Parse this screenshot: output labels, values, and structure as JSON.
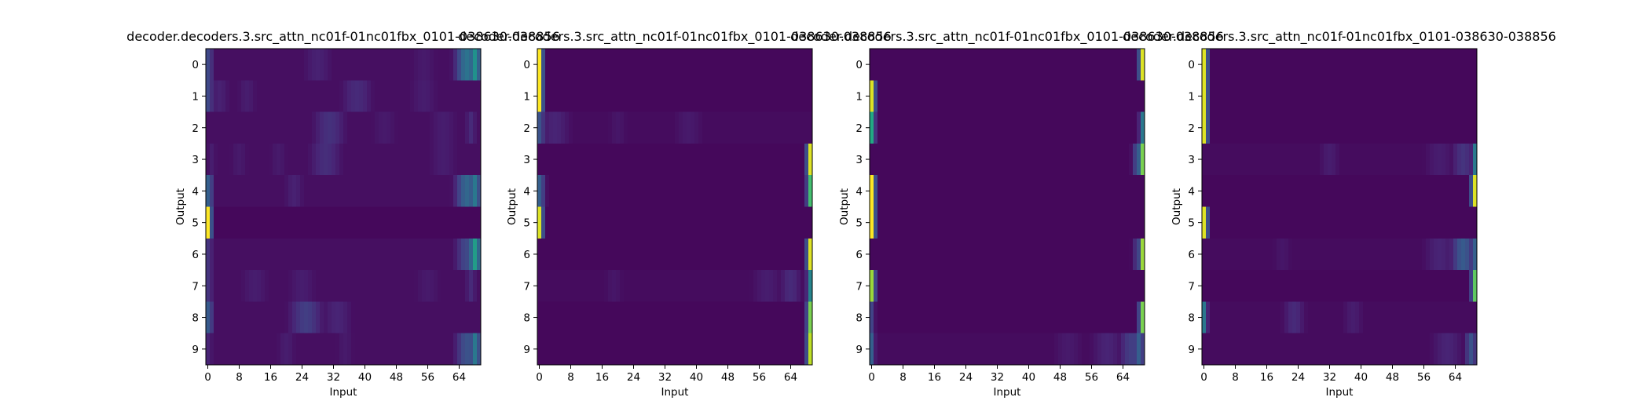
{
  "chart_data": [
    {
      "type": "heatmap",
      "title": "decoder.decoders.3.src_attn_nc01f-01nc01fbx_0101-038630-038856",
      "xlabel": "Input",
      "ylabel": "Output",
      "x_ticks": [
        "0",
        "8",
        "16",
        "24",
        "32",
        "40",
        "48",
        "56",
        "64"
      ],
      "y_ticks": [
        "0",
        "1",
        "2",
        "3",
        "4",
        "5",
        "6",
        "7",
        "8",
        "9"
      ],
      "n_inputs": 70,
      "colormap": "viridis",
      "value_range": [
        0,
        1
      ],
      "rows": [
        {
          "base": 0.04,
          "peaks": [
            [
              0,
              0.22,
              1
            ],
            [
              28,
              0.09,
              3
            ],
            [
              55,
              0.07,
              3
            ],
            [
              66,
              0.38,
              2
            ],
            [
              68,
              0.5,
              1
            ]
          ]
        },
        {
          "base": 0.04,
          "peaks": [
            [
              0,
              0.22,
              1
            ],
            [
              3,
              0.09,
              2
            ],
            [
              10,
              0.08,
              2
            ],
            [
              38,
              0.12,
              3
            ],
            [
              55,
              0.08,
              3
            ]
          ]
        },
        {
          "base": 0.04,
          "peaks": [
            [
              31,
              0.14,
              3
            ],
            [
              45,
              0.07,
              3
            ],
            [
              60,
              0.08,
              3
            ],
            [
              67,
              0.12,
              1
            ]
          ]
        },
        {
          "base": 0.04,
          "peaks": [
            [
              1,
              0.08,
              1
            ],
            [
              8,
              0.07,
              2
            ],
            [
              18,
              0.07,
              2
            ],
            [
              30,
              0.13,
              3
            ],
            [
              60,
              0.08,
              3
            ]
          ]
        },
        {
          "base": 0.04,
          "peaks": [
            [
              0,
              0.3,
              1
            ],
            [
              22,
              0.09,
              2
            ],
            [
              66,
              0.33,
              2
            ],
            [
              68,
              0.4,
              1
            ]
          ]
        },
        {
          "base": 0.02,
          "peaks": [
            [
              0,
              1.0,
              0.6
            ]
          ]
        },
        {
          "base": 0.04,
          "peaks": [
            [
              0,
              0.15,
              1
            ],
            [
              66,
              0.22,
              2
            ],
            [
              68,
              0.55,
              1
            ]
          ]
        },
        {
          "base": 0.04,
          "peaks": [
            [
              0,
              0.15,
              1
            ],
            [
              12,
              0.08,
              3
            ],
            [
              24,
              0.08,
              3
            ],
            [
              56,
              0.07,
              3
            ],
            [
              67,
              0.12,
              1
            ]
          ]
        },
        {
          "base": 0.04,
          "peaks": [
            [
              0,
              0.28,
              1
            ],
            [
              25,
              0.18,
              3
            ],
            [
              33,
              0.1,
              3
            ]
          ]
        },
        {
          "base": 0.04,
          "peaks": [
            [
              0,
              0.1,
              1
            ],
            [
              20,
              0.08,
              2
            ],
            [
              35,
              0.07,
              2
            ],
            [
              66,
              0.25,
              2
            ],
            [
              68,
              0.4,
              1
            ]
          ]
        }
      ]
    },
    {
      "type": "heatmap",
      "title": "decoder.decoders.3.src_attn_nc01f-01nc01fbx_0101-038630-038856",
      "xlabel": "Input",
      "ylabel": "Output",
      "x_ticks": [
        "0",
        "8",
        "16",
        "24",
        "32",
        "40",
        "48",
        "56",
        "64"
      ],
      "y_ticks": [
        "0",
        "1",
        "2",
        "3",
        "4",
        "5",
        "6",
        "7",
        "8",
        "9"
      ],
      "n_inputs": 70,
      "colormap": "viridis",
      "value_range": [
        0,
        1
      ],
      "rows": [
        {
          "base": 0.02,
          "peaks": [
            [
              0,
              1.0,
              0.6
            ]
          ]
        },
        {
          "base": 0.02,
          "peaks": [
            [
              0,
              1.0,
              0.6
            ]
          ]
        },
        {
          "base": 0.03,
          "peaks": [
            [
              0,
              0.25,
              1
            ],
            [
              4,
              0.1,
              3
            ],
            [
              20,
              0.06,
              2
            ],
            [
              38,
              0.07,
              3
            ]
          ]
        },
        {
          "base": 0.02,
          "peaks": [
            [
              69,
              0.95,
              0.6
            ]
          ]
        },
        {
          "base": 0.02,
          "peaks": [
            [
              0,
              0.3,
              1
            ],
            [
              69,
              0.7,
              0.6
            ]
          ]
        },
        {
          "base": 0.02,
          "peaks": [
            [
              0,
              0.95,
              0.6
            ]
          ]
        },
        {
          "base": 0.02,
          "peaks": [
            [
              69,
              0.95,
              0.6
            ]
          ]
        },
        {
          "base": 0.03,
          "peaks": [
            [
              19,
              0.06,
              2
            ],
            [
              58,
              0.08,
              3
            ],
            [
              64,
              0.12,
              2
            ],
            [
              69,
              0.45,
              0.6
            ]
          ]
        },
        {
          "base": 0.02,
          "peaks": [
            [
              69,
              0.8,
              0.6
            ]
          ]
        },
        {
          "base": 0.02,
          "peaks": [
            [
              69,
              0.9,
              0.6
            ]
          ]
        }
      ]
    },
    {
      "type": "heatmap",
      "title": "decoder.decoders.3.src_attn_nc01f-01nc01fbx_0101-038630-038856",
      "xlabel": "Input",
      "ylabel": "Output",
      "x_ticks": [
        "0",
        "8",
        "16",
        "24",
        "32",
        "40",
        "48",
        "56",
        "64"
      ],
      "y_ticks": [
        "0",
        "1",
        "2",
        "3",
        "4",
        "5",
        "6",
        "7",
        "8",
        "9"
      ],
      "n_inputs": 70,
      "colormap": "viridis",
      "value_range": [
        0,
        1
      ],
      "rows": [
        {
          "base": 0.02,
          "peaks": [
            [
              69,
              0.95,
              0.6
            ]
          ]
        },
        {
          "base": 0.02,
          "peaks": [
            [
              0,
              0.95,
              0.6
            ]
          ]
        },
        {
          "base": 0.02,
          "peaks": [
            [
              0,
              0.6,
              0.6
            ],
            [
              69,
              0.4,
              0.6
            ]
          ]
        },
        {
          "base": 0.02,
          "peaks": [
            [
              68,
              0.3,
              1
            ],
            [
              69,
              0.8,
              0.6
            ]
          ]
        },
        {
          "base": 0.02,
          "peaks": [
            [
              0,
              1.0,
              0.6
            ]
          ]
        },
        {
          "base": 0.02,
          "peaks": [
            [
              0,
              1.0,
              0.6
            ]
          ]
        },
        {
          "base": 0.02,
          "peaks": [
            [
              68,
              0.2,
              1
            ],
            [
              69,
              0.85,
              0.6
            ]
          ]
        },
        {
          "base": 0.02,
          "peaks": [
            [
              0,
              0.85,
              0.6
            ]
          ]
        },
        {
          "base": 0.02,
          "peaks": [
            [
              0,
              0.2,
              0.6
            ],
            [
              69,
              0.8,
              0.6
            ]
          ]
        },
        {
          "base": 0.03,
          "peaks": [
            [
              0,
              0.3,
              0.6
            ],
            [
              50,
              0.07,
              3
            ],
            [
              60,
              0.1,
              3
            ],
            [
              66,
              0.18,
              2
            ],
            [
              68,
              0.3,
              1
            ]
          ]
        }
      ]
    },
    {
      "type": "heatmap",
      "title": "decoder.decoders.3.src_attn_nc01f-01nc01fbx_0101-038630-038856",
      "xlabel": "Input",
      "ylabel": "Output",
      "x_ticks": [
        "0",
        "8",
        "16",
        "24",
        "32",
        "40",
        "48",
        "56",
        "64"
      ],
      "y_ticks": [
        "0",
        "1",
        "2",
        "3",
        "4",
        "5",
        "6",
        "7",
        "8",
        "9"
      ],
      "n_inputs": 70,
      "colormap": "viridis",
      "value_range": [
        0,
        1
      ],
      "rows": [
        {
          "base": 0.02,
          "peaks": [
            [
              0,
              0.95,
              0.6
            ]
          ]
        },
        {
          "base": 0.02,
          "peaks": [
            [
              0,
              0.95,
              0.6
            ]
          ]
        },
        {
          "base": 0.02,
          "peaks": [
            [
              0,
              0.95,
              0.6
            ]
          ]
        },
        {
          "base": 0.03,
          "peaks": [
            [
              32,
              0.08,
              2
            ],
            [
              60,
              0.08,
              3
            ],
            [
              66,
              0.15,
              2
            ],
            [
              69,
              0.4,
              0.6
            ]
          ]
        },
        {
          "base": 0.02,
          "peaks": [
            [
              69,
              0.95,
              0.6
            ]
          ]
        },
        {
          "base": 0.02,
          "peaks": [
            [
              0,
              0.95,
              0.6
            ]
          ]
        },
        {
          "base": 0.03,
          "peaks": [
            [
              20,
              0.06,
              2
            ],
            [
              60,
              0.1,
              3
            ],
            [
              66,
              0.28,
              2
            ],
            [
              69,
              0.3,
              0.6
            ]
          ]
        },
        {
          "base": 0.02,
          "peaks": [
            [
              69,
              0.75,
              0.6
            ]
          ]
        },
        {
          "base": 0.03,
          "peaks": [
            [
              0,
              0.4,
              0.6
            ],
            [
              23,
              0.12,
              2
            ],
            [
              38,
              0.08,
              2
            ]
          ]
        },
        {
          "base": 0.03,
          "peaks": [
            [
              62,
              0.1,
              3
            ],
            [
              68,
              0.25,
              1
            ]
          ]
        }
      ]
    }
  ]
}
